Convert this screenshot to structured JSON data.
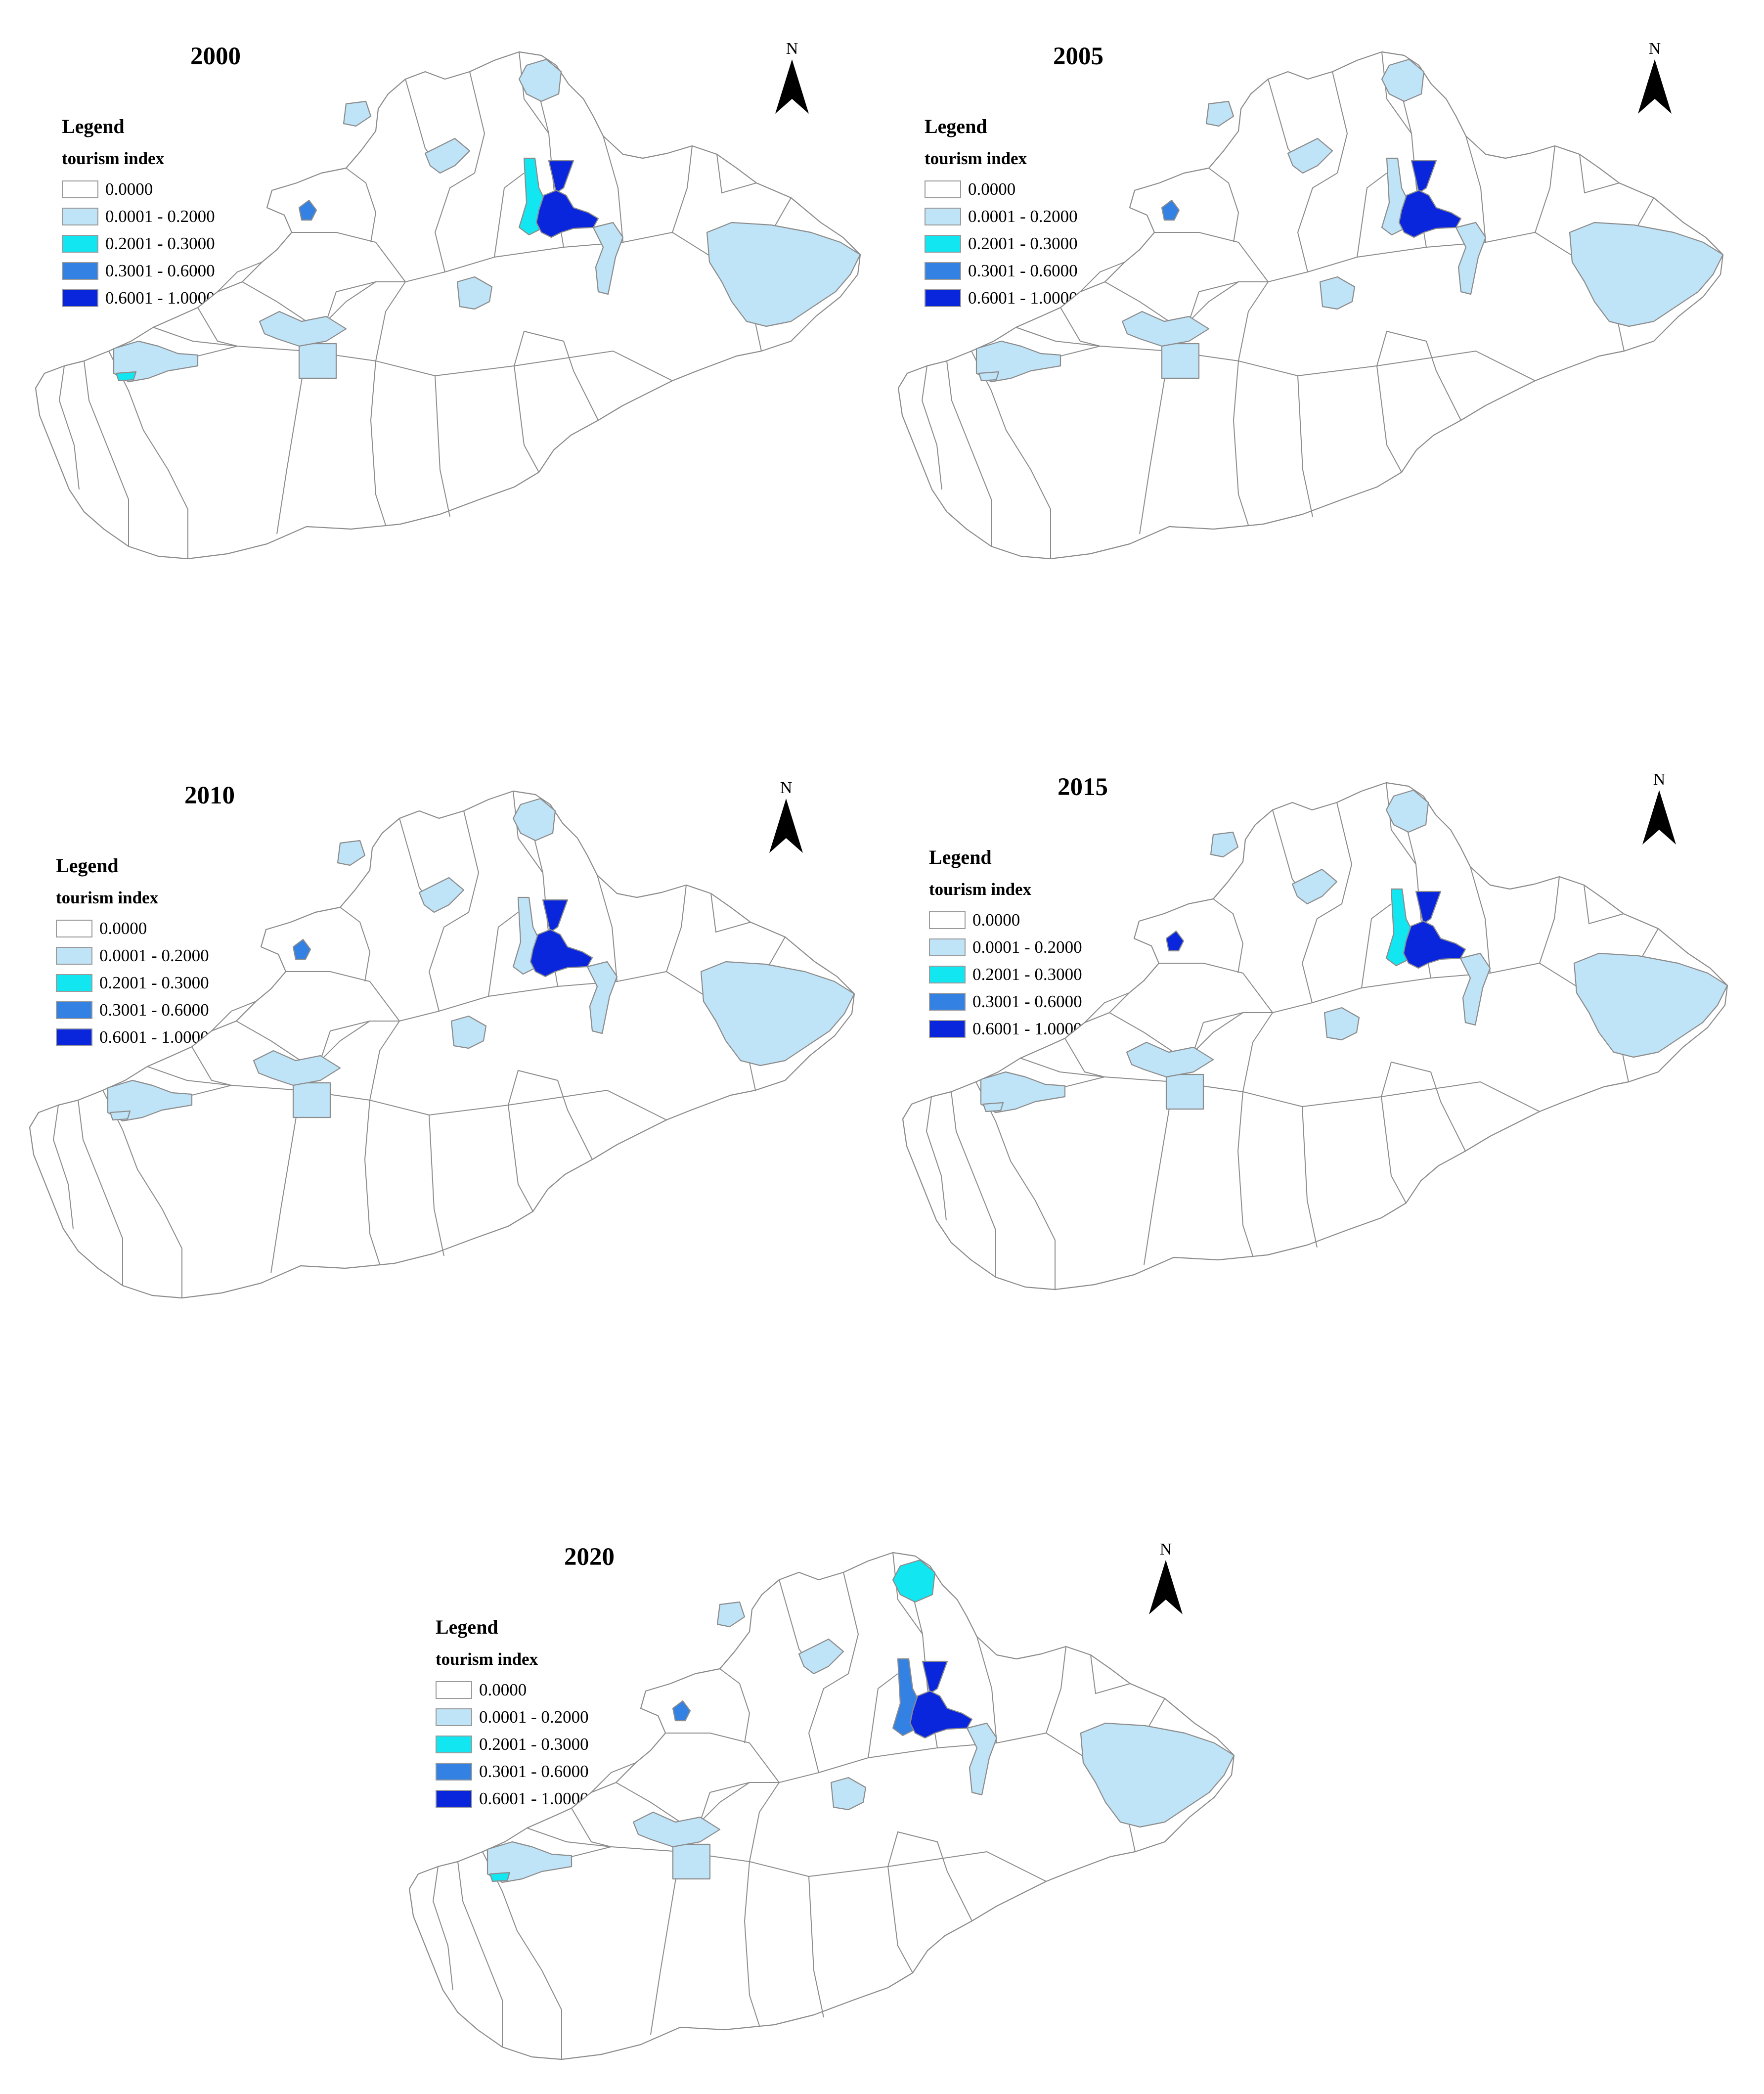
{
  "legend": {
    "title": "Legend",
    "subtitle": "tourism index",
    "classes": [
      {
        "label": "0.0000",
        "color": "#ffffff"
      },
      {
        "label": "0.0001 - 0.2000",
        "color": "#bfe3f7"
      },
      {
        "label": "0.2001 - 0.3000",
        "color": "#12e6f0"
      },
      {
        "label": "0.3001 - 0.6000",
        "color": "#3481e4"
      },
      {
        "label": "0.6001 - 1.0000",
        "color": "#0a26dd"
      }
    ]
  },
  "north_label": "N",
  "maps": [
    {
      "year": "2000",
      "regions": {
        "north_lake": 1,
        "west_strip": 2,
        "core_wedge": 4,
        "core_body": 4,
        "east_strip": 1,
        "east_big": 1,
        "mid_lake": 1,
        "west_lake": 1,
        "west_small": 2,
        "south_rect": 1,
        "northwest_a": 1,
        "northwest_b": 1,
        "nw_city": 3,
        "crescent": 1
      }
    },
    {
      "year": "2005",
      "regions": {
        "north_lake": 1,
        "west_strip": 1,
        "core_wedge": 4,
        "core_body": 4,
        "east_strip": 1,
        "east_big": 1,
        "mid_lake": 1,
        "west_lake": 1,
        "west_small": 1,
        "south_rect": 1,
        "northwest_a": 1,
        "northwest_b": 1,
        "nw_city": 3,
        "crescent": 1
      }
    },
    {
      "year": "2010",
      "regions": {
        "north_lake": 1,
        "west_strip": 1,
        "core_wedge": 4,
        "core_body": 4,
        "east_strip": 1,
        "east_big": 1,
        "mid_lake": 1,
        "west_lake": 1,
        "west_small": 1,
        "south_rect": 1,
        "northwest_a": 1,
        "northwest_b": 1,
        "nw_city": 3,
        "crescent": 1
      }
    },
    {
      "year": "2015",
      "regions": {
        "north_lake": 1,
        "west_strip": 2,
        "core_wedge": 4,
        "core_body": 4,
        "east_strip": 1,
        "east_big": 1,
        "mid_lake": 1,
        "west_lake": 1,
        "west_small": 1,
        "south_rect": 1,
        "northwest_a": 1,
        "northwest_b": 1,
        "nw_city": 4,
        "crescent": 1
      }
    },
    {
      "year": "2020",
      "regions": {
        "north_lake": 2,
        "west_strip": 3,
        "core_wedge": 4,
        "core_body": 4,
        "east_strip": 1,
        "east_big": 1,
        "mid_lake": 1,
        "west_lake": 1,
        "west_small": 2,
        "south_rect": 1,
        "northwest_a": 1,
        "northwest_b": 1,
        "nw_city": 3,
        "crescent": 1
      }
    }
  ]
}
